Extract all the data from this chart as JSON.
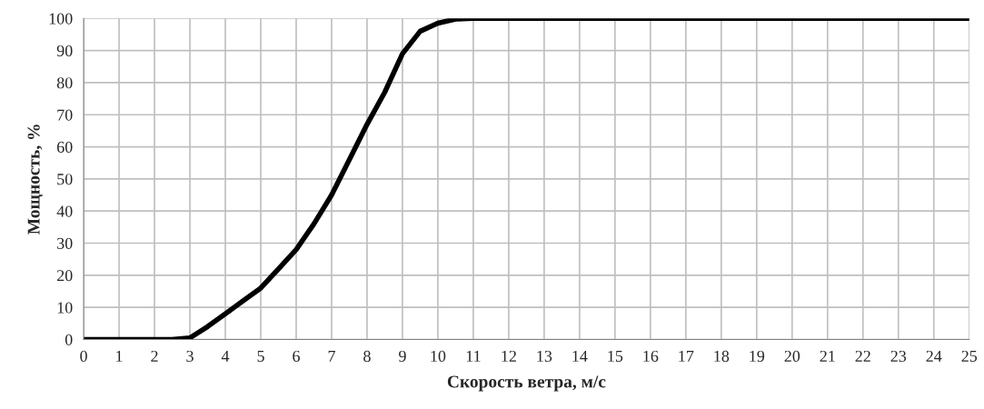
{
  "chart_data": {
    "type": "line",
    "xlabel": "Скорость ветра, м/с",
    "ylabel": "Мощность, %",
    "x": [
      0,
      1,
      2,
      2.5,
      3,
      3.5,
      4,
      4.5,
      5,
      5.5,
      6,
      6.5,
      7,
      7.5,
      8,
      8.5,
      9,
      9.5,
      10,
      10.5,
      11,
      12,
      13,
      14,
      15,
      16,
      17,
      18,
      19,
      20,
      21,
      22,
      23,
      24,
      25
    ],
    "series": [
      {
        "color": "#000000",
        "values": [
          0,
          0,
          0,
          0,
          0.5,
          4,
          8,
          12,
          16,
          22,
          28,
          36,
          45,
          56,
          67,
          77,
          89,
          96,
          98.5,
          99.8,
          100,
          100,
          100,
          100,
          100,
          100,
          100,
          100,
          100,
          100,
          100,
          100,
          100,
          100,
          100
        ]
      }
    ],
    "xlim": [
      0,
      25
    ],
    "xticks": [
      0,
      1,
      2,
      3,
      4,
      5,
      6,
      7,
      8,
      9,
      10,
      11,
      12,
      13,
      14,
      15,
      16,
      17,
      18,
      19,
      20,
      21,
      22,
      23,
      24,
      25
    ],
    "ylim": [
      0,
      100
    ],
    "yticks": [
      0,
      10,
      20,
      30,
      40,
      50,
      60,
      70,
      80,
      90,
      100
    ],
    "grid": true,
    "marker": "none",
    "line_style": "solid"
  }
}
